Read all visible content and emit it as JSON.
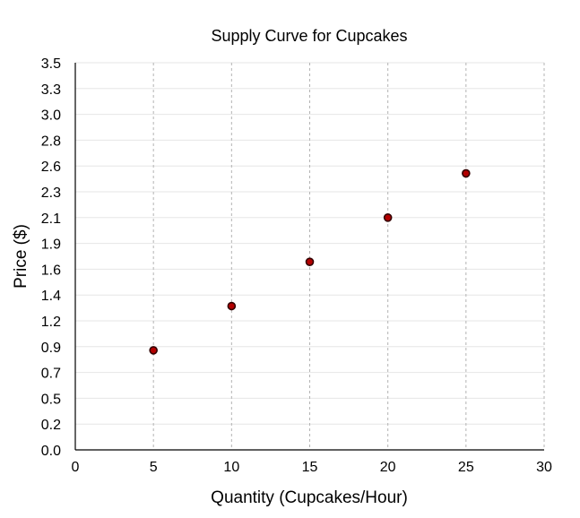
{
  "chart_data": {
    "type": "scatter",
    "title": "Supply Curve for Cupcakes",
    "xlabel": "Quantity (Cupcakes/Hour)",
    "ylabel": "Price ($)",
    "xlim": [
      0,
      30
    ],
    "ylim": [
      0,
      3.5
    ],
    "x_ticks": [
      "0",
      "5",
      "10",
      "15",
      "20",
      "25",
      "30"
    ],
    "y_ticks": [
      "0.0",
      "0.2",
      "0.5",
      "0.7",
      "0.9",
      "1.2",
      "1.4",
      "1.6",
      "1.9",
      "2.1",
      "2.3",
      "2.6",
      "2.8",
      "3.0",
      "3.3",
      "3.5"
    ],
    "grid": {
      "horizontal": true,
      "vertical": true,
      "vertical_style": "dashed"
    },
    "series": [
      {
        "points": [
          {
            "x": 5,
            "y": 0.9
          },
          {
            "x": 10,
            "y": 1.3
          },
          {
            "x": 15,
            "y": 1.7
          },
          {
            "x": 20,
            "y": 2.1
          },
          {
            "x": 25,
            "y": 2.5
          }
        ],
        "color": "#b30000"
      }
    ]
  }
}
